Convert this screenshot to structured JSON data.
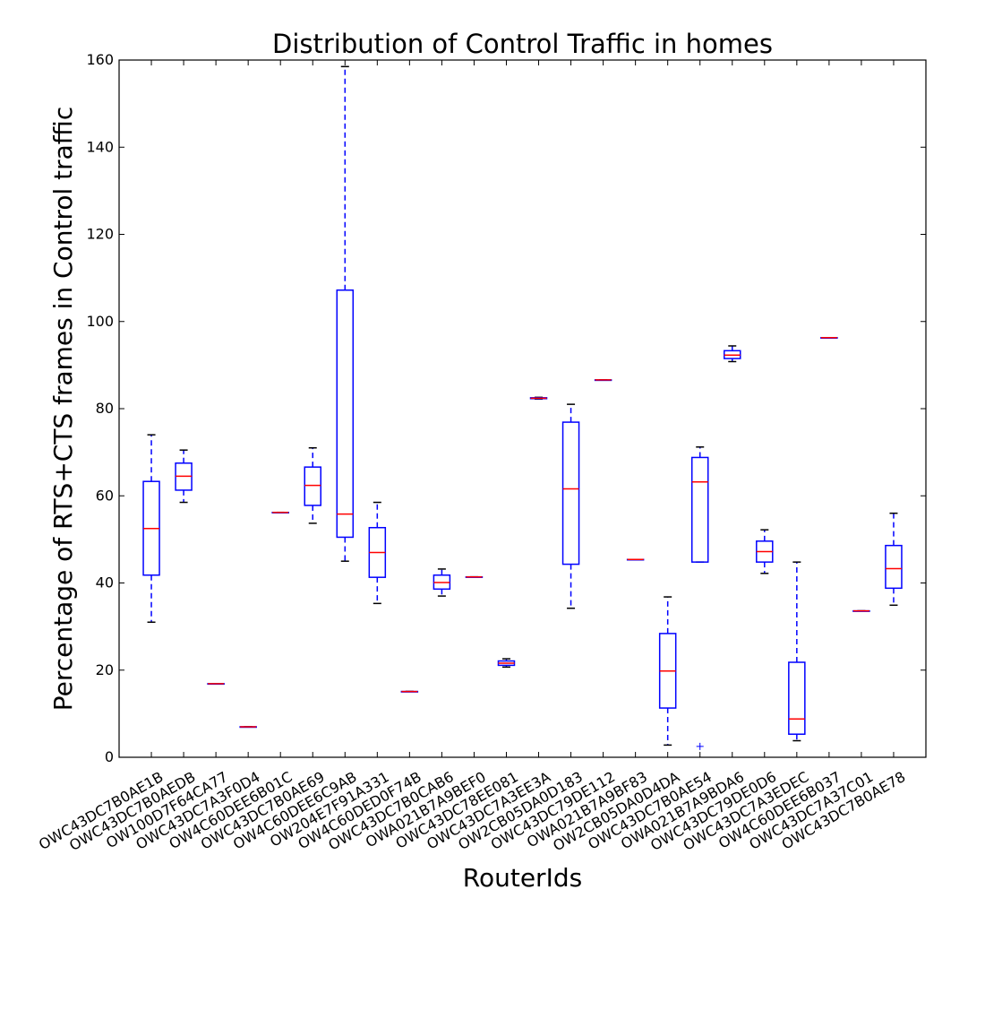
{
  "chart_data": {
    "type": "box",
    "title": "Distribution of Control Traffic in homes",
    "xlabel": "RouterIds",
    "ylabel": "Percentage of RTS+CTS frames in Control traffic",
    "ylim": [
      0,
      160
    ],
    "yticks": [
      0,
      20,
      40,
      60,
      80,
      100,
      120,
      140,
      160
    ],
    "grid": false,
    "colors": {
      "box": "#0000ff",
      "median": "#ff0000",
      "flier": "#0000ff"
    },
    "categories": [
      "OWC43DC7B0AE1B",
      "OWC43DC7B0AEDB",
      "OW100D7F64CA77",
      "OWC43DC7A3F0D4",
      "OW4C60DEE6B01C",
      "OWC43DC7B0AE69",
      "OW4C60DEE6C9AB",
      "OW204E7F91A331",
      "OW4C60DED0F74B",
      "OWC43DC7B0CAB6",
      "OWA021B7A9BEF0",
      "OWC43DC78EE081",
      "OWC43DC7A3EE3A",
      "OW2CB05DA0D183",
      "OWC43DC79DE112",
      "OWA021B7A9BF83",
      "OW2CB05DA0D4DA",
      "OWC43DC7B0AE54",
      "OWA021B7A9BDA6",
      "OWC43DC79DE0D6",
      "OWC43DC7A3EDEC",
      "OW4C60DEE6B037",
      "OWC43DC7A37C01",
      "OWC43DC7B0AE78"
    ],
    "boxes": [
      {
        "whislo": 31.0,
        "q1": 41.8,
        "med": 52.5,
        "q3": 63.3,
        "whishi": 74.0,
        "fliers": []
      },
      {
        "whislo": 58.5,
        "q1": 61.3,
        "med": 64.5,
        "q3": 67.5,
        "whishi": 70.5,
        "fliers": []
      },
      {
        "whislo": 16.9,
        "q1": 16.9,
        "med": 16.9,
        "q3": 16.9,
        "whishi": 16.9,
        "fliers": []
      },
      {
        "whislo": 7.0,
        "q1": 7.0,
        "med": 7.0,
        "q3": 7.0,
        "whishi": 7.0,
        "fliers": []
      },
      {
        "whislo": 56.2,
        "q1": 56.2,
        "med": 56.2,
        "q3": 56.2,
        "whishi": 56.2,
        "fliers": []
      },
      {
        "whislo": 53.7,
        "q1": 57.8,
        "med": 62.4,
        "q3": 66.6,
        "whishi": 71.0,
        "fliers": []
      },
      {
        "whislo": 45.0,
        "q1": 50.5,
        "med": 55.8,
        "q3": 107.2,
        "whishi": 158.5,
        "fliers": []
      },
      {
        "whislo": 35.3,
        "q1": 41.3,
        "med": 47.0,
        "q3": 52.7,
        "whishi": 58.5,
        "fliers": []
      },
      {
        "whislo": 15.1,
        "q1": 15.1,
        "med": 15.1,
        "q3": 15.1,
        "whishi": 15.1,
        "fliers": []
      },
      {
        "whislo": 37.0,
        "q1": 38.6,
        "med": 40.1,
        "q3": 41.8,
        "whishi": 43.2,
        "fliers": []
      },
      {
        "whislo": 41.4,
        "q1": 41.4,
        "med": 41.4,
        "q3": 41.4,
        "whishi": 41.4,
        "fliers": []
      },
      {
        "whislo": 20.7,
        "q1": 21.1,
        "med": 21.6,
        "q3": 22.1,
        "whishi": 22.6,
        "fliers": []
      },
      {
        "whislo": 82.2,
        "q1": 82.3,
        "med": 82.4,
        "q3": 82.5,
        "whishi": 82.6,
        "fliers": []
      },
      {
        "whislo": 34.2,
        "q1": 44.3,
        "med": 61.6,
        "q3": 76.9,
        "whishi": 81.0,
        "fliers": []
      },
      {
        "whislo": 86.6,
        "q1": 86.6,
        "med": 86.6,
        "q3": 86.6,
        "whishi": 86.6,
        "fliers": []
      },
      {
        "whislo": 45.4,
        "q1": 45.4,
        "med": 45.4,
        "q3": 45.4,
        "whishi": 45.4,
        "fliers": []
      },
      {
        "whislo": 2.8,
        "q1": 11.3,
        "med": 19.8,
        "q3": 28.4,
        "whishi": 36.8,
        "fliers": []
      },
      {
        "whislo": 44.8,
        "q1": 44.8,
        "med": 63.2,
        "q3": 68.8,
        "whishi": 71.2,
        "fliers": [
          2.5
        ]
      },
      {
        "whislo": 90.8,
        "q1": 91.5,
        "med": 92.3,
        "q3": 93.3,
        "whishi": 94.4,
        "fliers": []
      },
      {
        "whislo": 42.2,
        "q1": 44.8,
        "med": 47.2,
        "q3": 49.6,
        "whishi": 52.2,
        "fliers": []
      },
      {
        "whislo": 3.8,
        "q1": 5.3,
        "med": 8.8,
        "q3": 21.8,
        "whishi": 44.8,
        "fliers": []
      },
      {
        "whislo": 96.3,
        "q1": 96.3,
        "med": 96.3,
        "q3": 96.3,
        "whishi": 96.3,
        "fliers": []
      },
      {
        "whislo": 33.6,
        "q1": 33.6,
        "med": 33.6,
        "q3": 33.6,
        "whishi": 33.6,
        "fliers": []
      },
      {
        "whislo": 34.9,
        "q1": 38.8,
        "med": 43.3,
        "q3": 48.6,
        "whishi": 56.0,
        "fliers": []
      }
    ]
  }
}
